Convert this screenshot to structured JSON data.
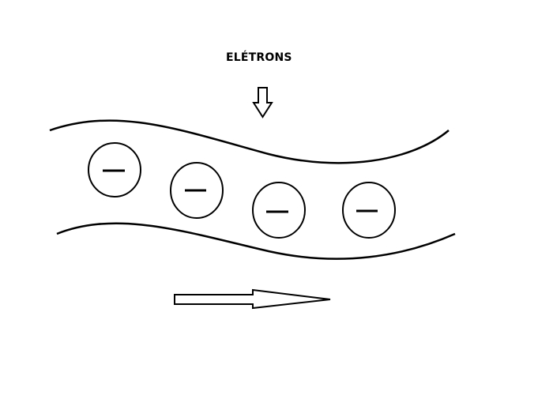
{
  "diagram": {
    "label": "ELÉTRONS",
    "electron_sign": "−",
    "electron_count": 4,
    "line_color": "#000000",
    "background": "#ffffff"
  }
}
